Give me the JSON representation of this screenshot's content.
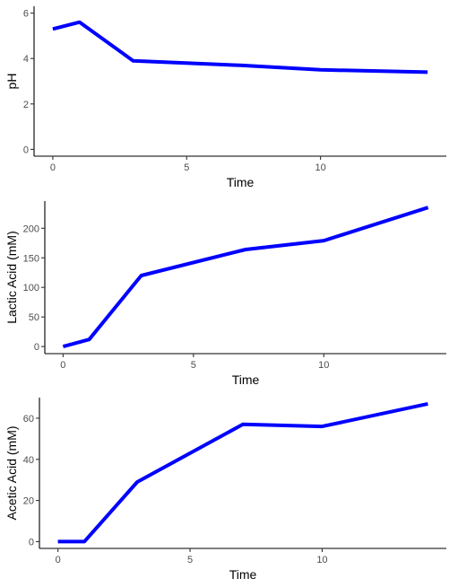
{
  "chart_data": [
    {
      "type": "line",
      "title": "",
      "xlabel": "Time",
      "ylabel": "pH",
      "xlim": [
        -0.7,
        14.7
      ],
      "ylim": [
        -0.3,
        6.3
      ],
      "x_ticks": [
        0,
        5,
        10
      ],
      "y_ticks": [
        0,
        2,
        4,
        6
      ],
      "grid": false,
      "series": [
        {
          "color": "#0000ff",
          "x": [
            0,
            1,
            3,
            7,
            10,
            14
          ],
          "y": [
            5.3,
            5.6,
            3.9,
            3.7,
            3.5,
            3.4
          ]
        }
      ]
    },
    {
      "type": "line",
      "title": "",
      "xlabel": "Time",
      "ylabel": "Lactic Acid (mM)",
      "xlim": [
        -0.7,
        14.7
      ],
      "ylim": [
        -12,
        246
      ],
      "x_ticks": [
        0,
        5,
        10
      ],
      "y_ticks": [
        0,
        50,
        100,
        150,
        200
      ],
      "grid": false,
      "series": [
        {
          "color": "#0000ff",
          "x": [
            0,
            1,
            3,
            7,
            10,
            14
          ],
          "y": [
            0,
            12,
            120,
            164,
            179,
            235
          ]
        }
      ]
    },
    {
      "type": "line",
      "title": "",
      "xlabel": "Time",
      "ylabel": "Acetic Acid (mM)",
      "xlim": [
        -0.7,
        14.7
      ],
      "ylim": [
        -3.3,
        70
      ],
      "x_ticks": [
        0,
        5,
        10
      ],
      "y_ticks": [
        0,
        20,
        40,
        60
      ],
      "grid": false,
      "series": [
        {
          "color": "#0000ff",
          "x": [
            0,
            1,
            3,
            7,
            10,
            14
          ],
          "y": [
            0,
            0,
            29,
            57,
            56,
            67
          ]
        }
      ]
    }
  ]
}
